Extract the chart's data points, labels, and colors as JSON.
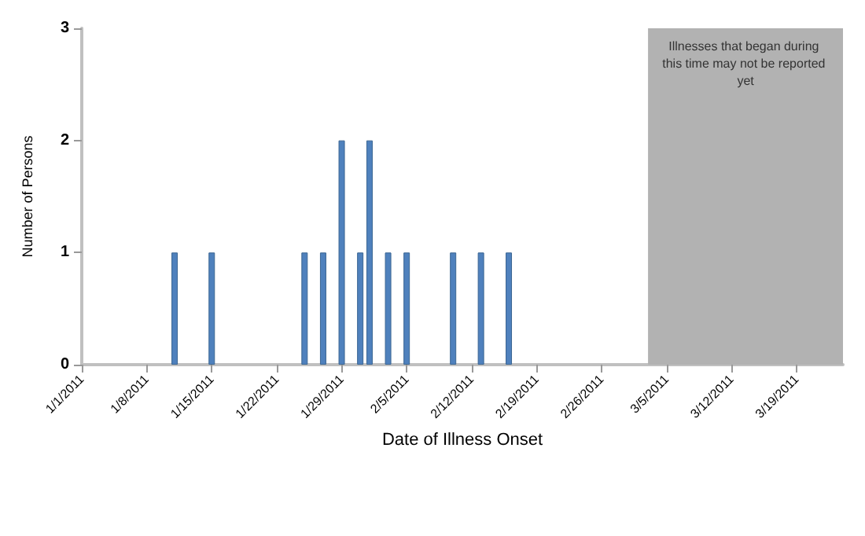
{
  "chart_data": {
    "type": "bar",
    "xlabel": "Date of Illness Onset",
    "ylabel": "Number of Persons",
    "x": [
      "2011-01-11",
      "2011-01-15",
      "2011-01-25",
      "2011-01-27",
      "2011-01-29",
      "2011-01-31",
      "2011-02-01",
      "2011-02-03",
      "2011-02-05",
      "2011-02-10",
      "2011-02-13",
      "2011-02-16"
    ],
    "values": [
      1,
      1,
      1,
      1,
      2,
      1,
      2,
      1,
      1,
      1,
      1,
      1
    ],
    "color": "#4f81bd",
    "xlim": [
      "2011-01-01",
      "2011-03-24"
    ],
    "xticks": [
      {
        "value": "2011-01-01",
        "label": "1/1/2011"
      },
      {
        "value": "2011-01-08",
        "label": "1/8/2011"
      },
      {
        "value": "2011-01-15",
        "label": "1/15/2011"
      },
      {
        "value": "2011-01-22",
        "label": "1/22/2011"
      },
      {
        "value": "2011-01-29",
        "label": "1/29/2011"
      },
      {
        "value": "2011-02-05",
        "label": "2/5/2011"
      },
      {
        "value": "2011-02-12",
        "label": "2/12/2011"
      },
      {
        "value": "2011-02-19",
        "label": "2/19/2011"
      },
      {
        "value": "2011-02-26",
        "label": "2/26/2011"
      },
      {
        "value": "2011-03-05",
        "label": "3/5/2011"
      },
      {
        "value": "2011-03-12",
        "label": "3/12/2011"
      },
      {
        "value": "2011-03-19",
        "label": "3/19/2011"
      }
    ],
    "ylim": [
      0,
      3
    ],
    "yticks": [
      0,
      1,
      2,
      3
    ],
    "bands": [
      {
        "axis": "x",
        "from": "2011-03-03",
        "to": "2011-03-24",
        "label": "Illnesses that began during this time may not be reported yet",
        "color": "#b2b2b2"
      }
    ],
    "grid": false
  }
}
